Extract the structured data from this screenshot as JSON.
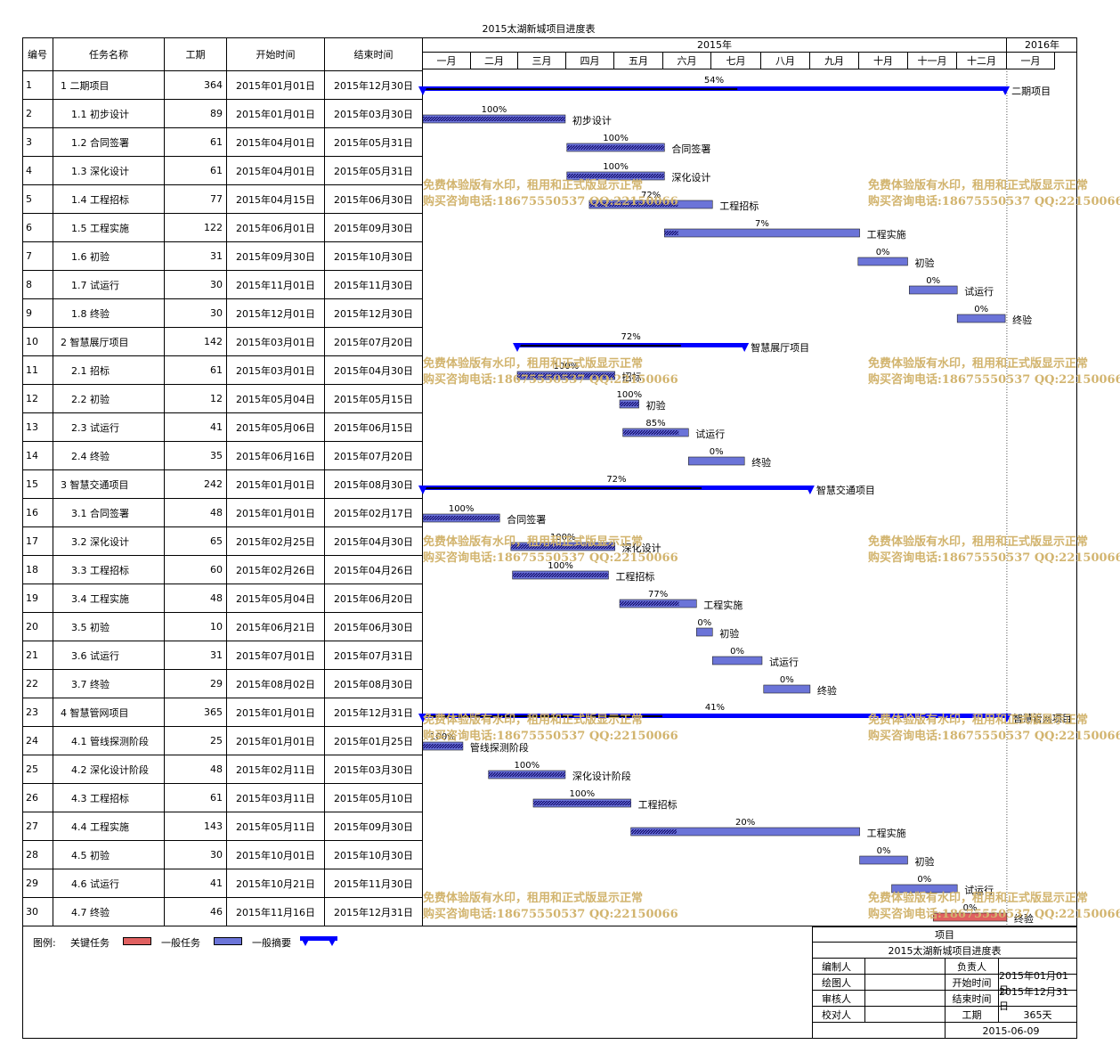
{
  "title": "2015太湖新城项目进度表",
  "headers": {
    "id": "编号",
    "name": "任务名称",
    "duration": "工期",
    "start": "开始时间",
    "end": "结束时间"
  },
  "years": [
    "2015年",
    "2016年"
  ],
  "months": [
    "一月",
    "二月",
    "三月",
    "四月",
    "五月",
    "六月",
    "七月",
    "八月",
    "九月",
    "十月",
    "十一月",
    "十二月",
    "一月"
  ],
  "colors": {
    "critical": "#e06060",
    "normal": "#6b74d8",
    "summary": "#0000ff",
    "progress": "#000000",
    "border": "#000000"
  },
  "chart_data": {
    "type": "gantt",
    "x_axis": {
      "start": "2015-01-01",
      "end": "2016-01-31"
    },
    "tasks": [
      {
        "id": "1",
        "name": "1 二期项目",
        "duration": "364",
        "start": "2015年01月01日",
        "end": "2015年12月30日",
        "s": "2015-01-01",
        "e": "2015-12-30",
        "progress": 54,
        "kind": "summary",
        "label": "二期项目"
      },
      {
        "id": "2",
        "name": "1.1 初步设计",
        "duration": "89",
        "start": "2015年01月01日",
        "end": "2015年03月30日",
        "s": "2015-01-01",
        "e": "2015-03-30",
        "progress": 100,
        "kind": "normal",
        "label": "初步设计"
      },
      {
        "id": "3",
        "name": "1.2 合同签署",
        "duration": "61",
        "start": "2015年04月01日",
        "end": "2015年05月31日",
        "s": "2015-04-01",
        "e": "2015-05-31",
        "progress": 100,
        "kind": "normal",
        "label": "合同签署"
      },
      {
        "id": "4",
        "name": "1.3 深化设计",
        "duration": "61",
        "start": "2015年04月01日",
        "end": "2015年05月31日",
        "s": "2015-04-01",
        "e": "2015-05-31",
        "progress": 100,
        "kind": "normal",
        "label": "深化设计"
      },
      {
        "id": "5",
        "name": "1.4 工程招标",
        "duration": "77",
        "start": "2015年04月15日",
        "end": "2015年06月30日",
        "s": "2015-04-15",
        "e": "2015-06-30",
        "progress": 72,
        "kind": "normal",
        "label": "工程招标"
      },
      {
        "id": "6",
        "name": "1.5 工程实施",
        "duration": "122",
        "start": "2015年06月01日",
        "end": "2015年09月30日",
        "s": "2015-06-01",
        "e": "2015-09-30",
        "progress": 7,
        "kind": "normal",
        "label": "工程实施"
      },
      {
        "id": "7",
        "name": "1.6 初验",
        "duration": "31",
        "start": "2015年09月30日",
        "end": "2015年10月30日",
        "s": "2015-09-30",
        "e": "2015-10-30",
        "progress": 0,
        "kind": "normal",
        "label": "初验"
      },
      {
        "id": "8",
        "name": "1.7 试运行",
        "duration": "30",
        "start": "2015年11月01日",
        "end": "2015年11月30日",
        "s": "2015-11-01",
        "e": "2015-11-30",
        "progress": 0,
        "kind": "normal",
        "label": "试运行"
      },
      {
        "id": "9",
        "name": "1.8 终验",
        "duration": "30",
        "start": "2015年12月01日",
        "end": "2015年12月30日",
        "s": "2015-12-01",
        "e": "2015-12-30",
        "progress": 0,
        "kind": "normal",
        "label": "终验"
      },
      {
        "id": "10",
        "name": "2 智慧展厅项目",
        "duration": "142",
        "start": "2015年03月01日",
        "end": "2015年07月20日",
        "s": "2015-03-01",
        "e": "2015-07-20",
        "progress": 72,
        "kind": "summary",
        "label": "智慧展厅项目"
      },
      {
        "id": "11",
        "name": "2.1 招标",
        "duration": "61",
        "start": "2015年03月01日",
        "end": "2015年04月30日",
        "s": "2015-03-01",
        "e": "2015-04-30",
        "progress": 100,
        "kind": "normal",
        "label": "招标"
      },
      {
        "id": "12",
        "name": "2.2 初验",
        "duration": "12",
        "start": "2015年05月04日",
        "end": "2015年05月15日",
        "s": "2015-05-04",
        "e": "2015-05-15",
        "progress": 100,
        "kind": "normal",
        "label": "初验"
      },
      {
        "id": "13",
        "name": "2.3 试运行",
        "duration": "41",
        "start": "2015年05月06日",
        "end": "2015年06月15日",
        "s": "2015-05-06",
        "e": "2015-06-15",
        "progress": 85,
        "kind": "normal",
        "label": "试运行"
      },
      {
        "id": "14",
        "name": "2.4 终验",
        "duration": "35",
        "start": "2015年06月16日",
        "end": "2015年07月20日",
        "s": "2015-06-16",
        "e": "2015-07-20",
        "progress": 0,
        "kind": "normal",
        "label": "终验"
      },
      {
        "id": "15",
        "name": "3 智慧交通项目",
        "duration": "242",
        "start": "2015年01月01日",
        "end": "2015年08月30日",
        "s": "2015-01-01",
        "e": "2015-08-30",
        "progress": 72,
        "kind": "summary",
        "label": "智慧交通项目"
      },
      {
        "id": "16",
        "name": "3.1 合同签署",
        "duration": "48",
        "start": "2015年01月01日",
        "end": "2015年02月17日",
        "s": "2015-01-01",
        "e": "2015-02-17",
        "progress": 100,
        "kind": "normal",
        "label": "合同签署"
      },
      {
        "id": "17",
        "name": "3.2 深化设计",
        "duration": "65",
        "start": "2015年02月25日",
        "end": "2015年04月30日",
        "s": "2015-02-25",
        "e": "2015-04-30",
        "progress": 100,
        "kind": "normal",
        "label": "深化设计"
      },
      {
        "id": "18",
        "name": "3.3 工程招标",
        "duration": "60",
        "start": "2015年02月26日",
        "end": "2015年04月26日",
        "s": "2015-02-26",
        "e": "2015-04-26",
        "progress": 100,
        "kind": "normal",
        "label": "工程招标"
      },
      {
        "id": "19",
        "name": "3.4 工程实施",
        "duration": "48",
        "start": "2015年05月04日",
        "end": "2015年06月20日",
        "s": "2015-05-04",
        "e": "2015-06-20",
        "progress": 77,
        "kind": "normal",
        "label": "工程实施"
      },
      {
        "id": "20",
        "name": "3.5 初验",
        "duration": "10",
        "start": "2015年06月21日",
        "end": "2015年06月30日",
        "s": "2015-06-21",
        "e": "2015-06-30",
        "progress": 0,
        "kind": "normal",
        "label": "初验"
      },
      {
        "id": "21",
        "name": "3.6 试运行",
        "duration": "31",
        "start": "2015年07月01日",
        "end": "2015年07月31日",
        "s": "2015-07-01",
        "e": "2015-07-31",
        "progress": 0,
        "kind": "normal",
        "label": "试运行"
      },
      {
        "id": "22",
        "name": "3.7 终验",
        "duration": "29",
        "start": "2015年08月02日",
        "end": "2015年08月30日",
        "s": "2015-08-02",
        "e": "2015-08-30",
        "progress": 0,
        "kind": "normal",
        "label": "终验"
      },
      {
        "id": "23",
        "name": "4 智慧管网项目",
        "duration": "365",
        "start": "2015年01月01日",
        "end": "2015年12月31日",
        "s": "2015-01-01",
        "e": "2015-12-31",
        "progress": 41,
        "kind": "summary",
        "label": "智慧管网项目"
      },
      {
        "id": "24",
        "name": "4.1 管线探测阶段",
        "duration": "25",
        "start": "2015年01月01日",
        "end": "2015年01月25日",
        "s": "2015-01-01",
        "e": "2015-01-25",
        "progress": 100,
        "kind": "normal",
        "label": "管线探测阶段"
      },
      {
        "id": "25",
        "name": "4.2 深化设计阶段",
        "duration": "48",
        "start": "2015年02月11日",
        "end": "2015年03月30日",
        "s": "2015-02-11",
        "e": "2015-03-30",
        "progress": 100,
        "kind": "normal",
        "label": "深化设计阶段"
      },
      {
        "id": "26",
        "name": "4.3 工程招标",
        "duration": "61",
        "start": "2015年03月11日",
        "end": "2015年05月10日",
        "s": "2015-03-11",
        "e": "2015-05-10",
        "progress": 100,
        "kind": "normal",
        "label": "工程招标"
      },
      {
        "id": "27",
        "name": "4.4 工程实施",
        "duration": "143",
        "start": "2015年05月11日",
        "end": "2015年09月30日",
        "s": "2015-05-11",
        "e": "2015-09-30",
        "progress": 20,
        "kind": "normal",
        "label": "工程实施"
      },
      {
        "id": "28",
        "name": "4.5 初验",
        "duration": "30",
        "start": "2015年10月01日",
        "end": "2015年10月30日",
        "s": "2015-10-01",
        "e": "2015-10-30",
        "progress": 0,
        "kind": "normal",
        "label": "初验"
      },
      {
        "id": "29",
        "name": "4.6 试运行",
        "duration": "41",
        "start": "2015年10月21日",
        "end": "2015年11月30日",
        "s": "2015-10-21",
        "e": "2015-11-30",
        "progress": 0,
        "kind": "normal",
        "label": "试运行"
      },
      {
        "id": "30",
        "name": "4.7 终验",
        "duration": "46",
        "start": "2015年11月16日",
        "end": "2015年12月31日",
        "s": "2015-11-16",
        "e": "2015-12-31",
        "progress": 0,
        "kind": "critical",
        "label": "终验"
      }
    ]
  },
  "legend": {
    "title": "图例:",
    "critical": "关键任务",
    "normal": "一般任务",
    "summary": "一般摘要"
  },
  "info": {
    "project_label": "项目",
    "project_name": "2015太湖新城项目进度表",
    "editor": "编制人",
    "owner": "负责人",
    "drawer": "绘图人",
    "start_label": "开始时间",
    "start_value": "2015年01月01日",
    "reviewer": "审核人",
    "end_label": "结束时间",
    "end_value": "2015年12月31日",
    "checker": "校对人",
    "duration_label": "工期",
    "duration_value": "365天",
    "date": "2015-06-09"
  },
  "watermark": {
    "line1": "免费体验版有水印，租用和正式版显示正常",
    "line2": "购买咨询电话:18675550537 QQ:22150066"
  }
}
